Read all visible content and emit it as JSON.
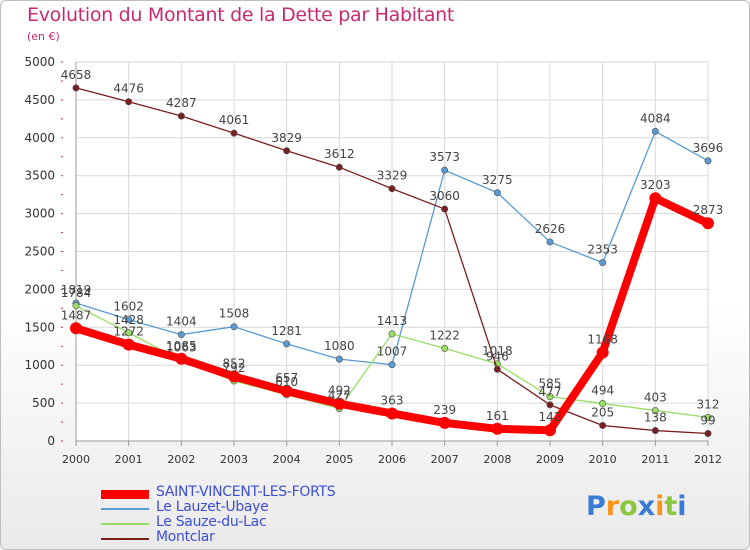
{
  "header": {
    "title": "Evolution du Montant de la Dette par Habitant",
    "subtitle": "(en €)"
  },
  "logo": {
    "letters": [
      "P",
      "r",
      "o",
      "x",
      "i",
      "t",
      "i"
    ]
  },
  "chart_data": {
    "type": "line",
    "title": "Evolution du Montant de la Dette par Habitant",
    "subtitle": "(en €)",
    "ylabel": "",
    "xlabel": "",
    "ylim": [
      0,
      5000
    ],
    "yticks": [
      0,
      500,
      1000,
      1500,
      2000,
      2500,
      3000,
      3500,
      4000,
      4500,
      5000
    ],
    "grid": true,
    "legend_position": "bottom-left",
    "x": [
      "2000",
      "2001",
      "2002",
      "2003",
      "2004",
      "2005",
      "2006",
      "2007",
      "2008",
      "2009",
      "2010",
      "2011",
      "2012"
    ],
    "series": [
      {
        "name": "SAINT-VINCENT-LES-FORTS",
        "color": "#ff0000",
        "values": [
          1487,
          1272,
          1085,
          852,
          657,
          492,
          363,
          239,
          161,
          142,
          1168,
          3203,
          2873
        ]
      },
      {
        "name": "Le Lauzet-Ubaye",
        "color": "#5a9ad2",
        "values": [
          1819,
          1602,
          1404,
          1508,
          1281,
          1080,
          1007,
          3573,
          3275,
          2626,
          2353,
          4084,
          3696
        ]
      },
      {
        "name": "Le Sauze-du-Lac",
        "color": "#99dd66",
        "values": [
          1784,
          1428,
          1063,
          792,
          610,
          427,
          1413,
          1222,
          1018,
          585,
          494,
          403,
          312
        ]
      },
      {
        "name": "Montclar",
        "color": "#7a1f1f",
        "values": [
          4658,
          4476,
          4287,
          4061,
          3829,
          3612,
          3329,
          3060,
          946,
          477,
          205,
          138,
          99
        ]
      }
    ]
  }
}
